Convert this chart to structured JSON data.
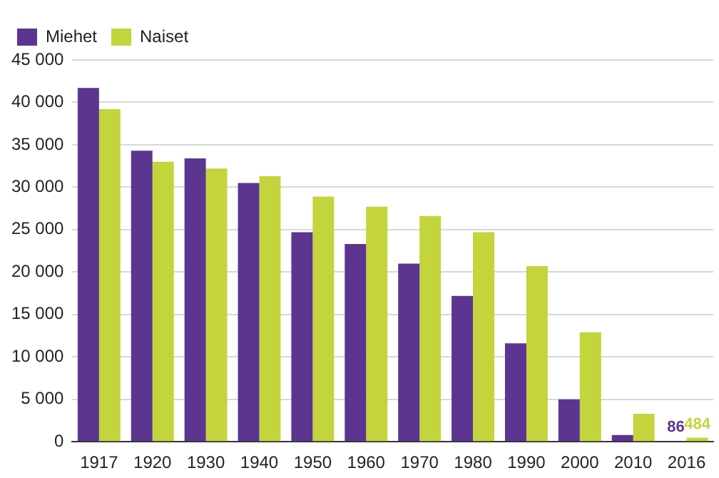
{
  "chart_data": {
    "type": "bar",
    "categories": [
      "1917",
      "1920",
      "1930",
      "1940",
      "1950",
      "1960",
      "1970",
      "1980",
      "1990",
      "2000",
      "2010",
      "2016"
    ],
    "series": [
      {
        "name": "Miehet",
        "color": "#5b3590",
        "values": [
          41700,
          34300,
          33400,
          30500,
          24700,
          23300,
          21000,
          17200,
          11600,
          5000,
          800,
          86
        ],
        "value_labels": [
          null,
          null,
          null,
          null,
          null,
          null,
          null,
          null,
          null,
          null,
          null,
          "86"
        ]
      },
      {
        "name": "Naiset",
        "color": "#c3d43c",
        "values": [
          39200,
          33000,
          32200,
          31300,
          28900,
          27700,
          26600,
          24700,
          20700,
          12900,
          3300,
          484
        ],
        "value_labels": [
          null,
          null,
          null,
          null,
          null,
          null,
          null,
          null,
          null,
          null,
          null,
          "484"
        ]
      }
    ],
    "ylim": [
      0,
      45000
    ],
    "yticks": [
      {
        "value": 0,
        "label": "0"
      },
      {
        "value": 5000,
        "label": "5 000"
      },
      {
        "value": 10000,
        "label": "10 000"
      },
      {
        "value": 15000,
        "label": "15 000"
      },
      {
        "value": 20000,
        "label": "20 000"
      },
      {
        "value": 25000,
        "label": "25 000"
      },
      {
        "value": 30000,
        "label": "30 000"
      },
      {
        "value": 35000,
        "label": "35 000"
      },
      {
        "value": 40000,
        "label": "40 000"
      },
      {
        "value": 45000,
        "label": "45 000"
      }
    ],
    "grid": "y",
    "legend": "top left"
  }
}
